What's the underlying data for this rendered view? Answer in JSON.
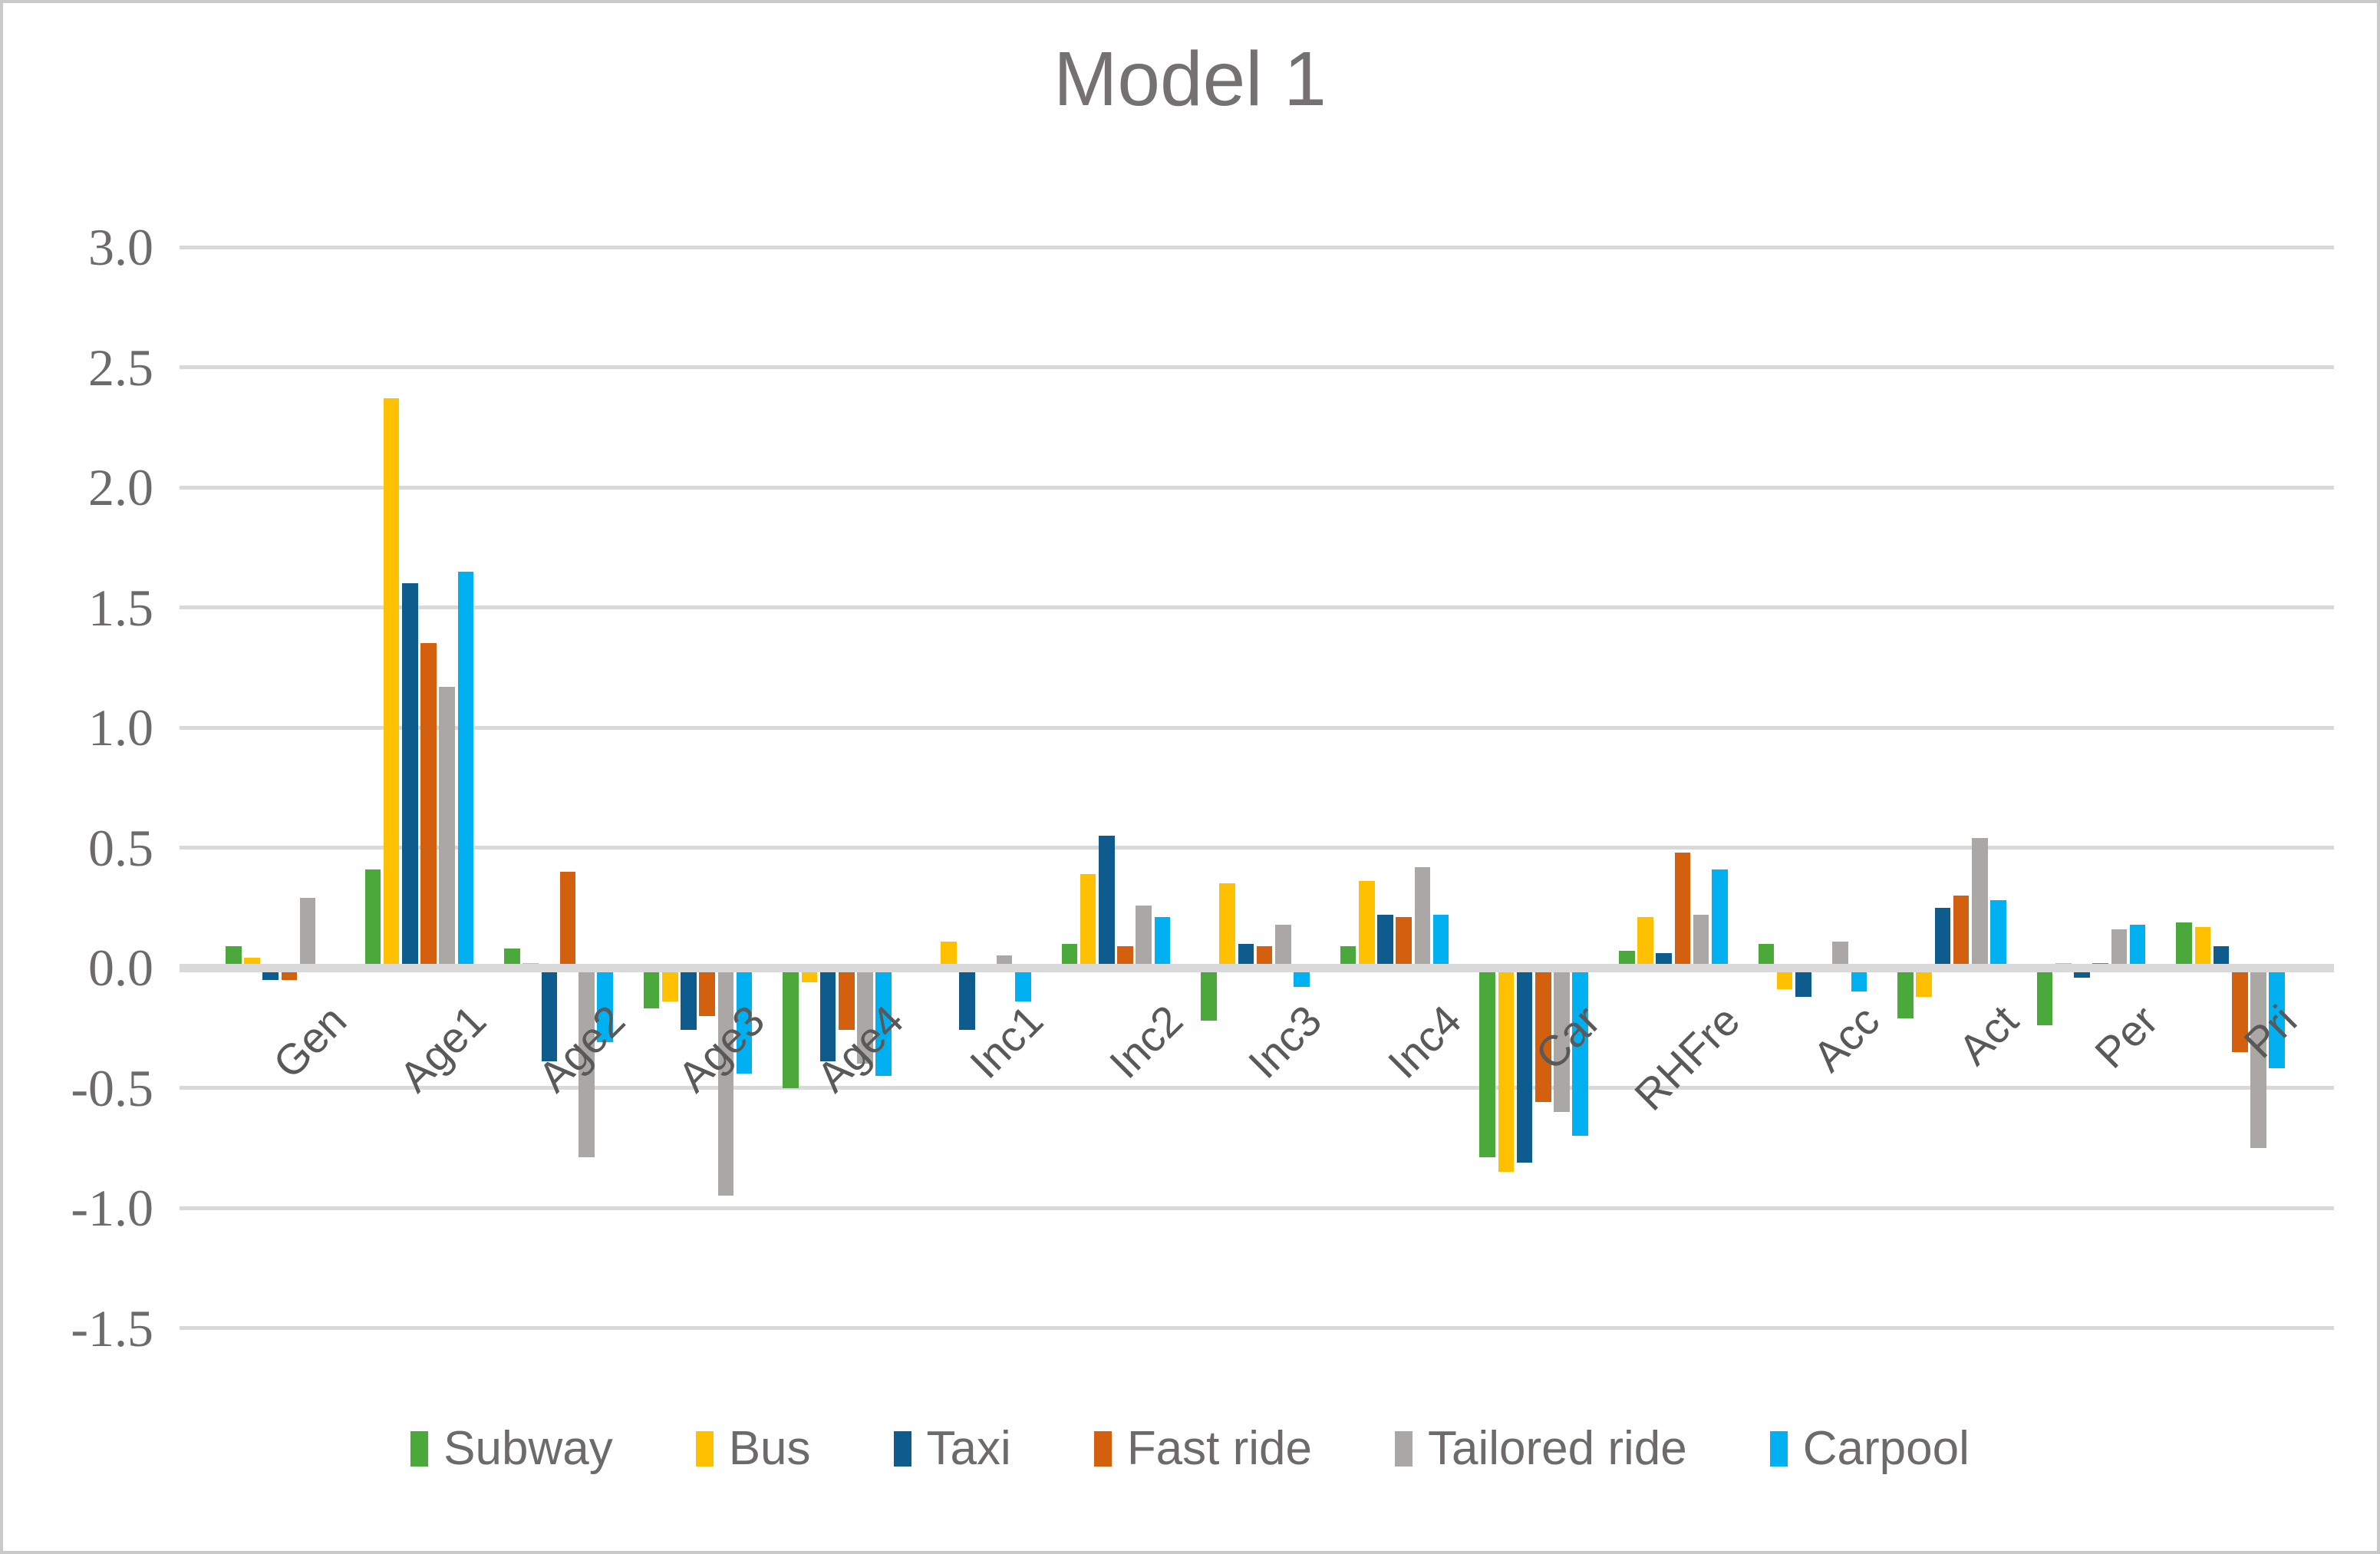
{
  "chart": {
    "title": "Model 1",
    "chart_data": {
      "type": "bar",
      "title": "Model 1",
      "xlabel": "",
      "ylabel": "",
      "grid": true,
      "legend_position": "bottom",
      "y_axis": {
        "min": -1.5,
        "max": 3.0,
        "step": 0.5,
        "tick_labels": [
          "3.0",
          "2.5",
          "2.0",
          "1.5",
          "1.0",
          "0.5",
          "0.0",
          "-0.5",
          "-1.0",
          "-1.5"
        ]
      },
      "categories": [
        "Gen",
        "Age1",
        "Age2",
        "Age3",
        "Age4",
        "Inc1",
        "Inc2",
        "Inc3",
        "Inc4",
        "Car",
        "RHFre",
        "Acc",
        "Act",
        "Per",
        "Pri"
      ],
      "series": [
        {
          "name": "Subway",
          "color": "#4BA93C",
          "values": [
            0.09,
            0.41,
            0.08,
            -0.17,
            -0.5,
            0,
            0.1,
            -0.22,
            0.09,
            -0.79,
            0.07,
            0.1,
            -0.21,
            -0.24,
            0.19
          ]
        },
        {
          "name": "Bus",
          "color": "#FFC000",
          "values": [
            0.04,
            2.37,
            0.02,
            -0.14,
            -0.06,
            0.11,
            0.39,
            0.35,
            0.36,
            -0.85,
            0.21,
            -0.09,
            -0.12,
            0.02,
            0.17
          ]
        },
        {
          "name": "Taxi",
          "color": "#0E5C8E",
          "values": [
            -0.05,
            1.6,
            -0.39,
            -0.26,
            -0.39,
            -0.26,
            0.55,
            0.1,
            0.22,
            -0.81,
            0.06,
            -0.12,
            0.25,
            -0.04,
            0.09
          ]
        },
        {
          "name": "Fast ride",
          "color": "#D2600E",
          "values": [
            -0.05,
            1.35,
            0.4,
            -0.2,
            -0.26,
            0,
            0.09,
            0.09,
            0.21,
            -0.56,
            0.48,
            0,
            0.3,
            0.02,
            -0.35
          ]
        },
        {
          "name": "Tailored ride",
          "color": "#ABA7A4",
          "values": [
            0.29,
            1.17,
            -0.79,
            -0.95,
            -0.4,
            0.05,
            0.26,
            0.18,
            0.42,
            -0.6,
            0.22,
            0.11,
            0.54,
            0.16,
            -0.75
          ]
        },
        {
          "name": "Carpool",
          "color": "#00B0F0",
          "values": [
            0,
            1.65,
            -0.31,
            -0.44,
            -0.45,
            -0.14,
            0.21,
            -0.08,
            0.22,
            -0.7,
            0.41,
            -0.1,
            0.28,
            0.18,
            -0.42
          ]
        }
      ]
    },
    "colors": {
      "gridline": "#D9D9D9",
      "axis_line": "#D9D9D9",
      "title_text": "#767171",
      "tick_text": "#6E6A6A",
      "category_text": "#595959"
    }
  }
}
